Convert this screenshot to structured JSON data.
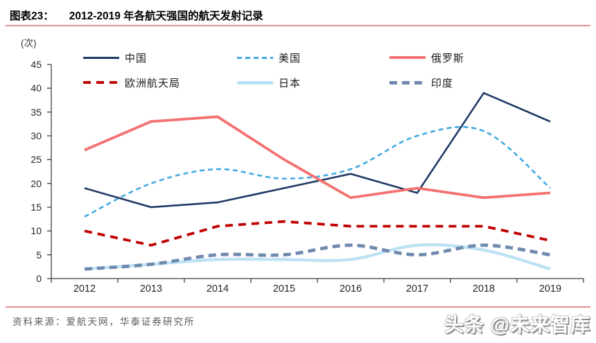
{
  "header": {
    "label": "图表23：",
    "title": "2012-2019 年各航天强国的航天发射记录"
  },
  "chart_data": {
    "type": "line",
    "title": "2012-2019 年各航天强国的航天发射记录",
    "unit_label": "(次)",
    "categories": [
      "2012",
      "2013",
      "2014",
      "2015",
      "2016",
      "2017",
      "2018",
      "2019"
    ],
    "ylim": [
      0,
      45
    ],
    "ytick_step": 5,
    "grid": false,
    "legend_position": "top-inside",
    "series": [
      {
        "key": "china",
        "name": "中国",
        "color": "#1F3864",
        "line_style": "solid",
        "values": [
          19,
          15,
          16,
          19,
          22,
          18,
          39,
          33
        ]
      },
      {
        "key": "usa",
        "name": "美国",
        "color": "#3FA9E0",
        "line_style": "dashed",
        "values": [
          13,
          20,
          23,
          21,
          23,
          30,
          31,
          19
        ]
      },
      {
        "key": "russia",
        "name": "俄罗斯",
        "color": "#F4716F",
        "line_style": "solid",
        "values": [
          27,
          33,
          34,
          25,
          17,
          19,
          17,
          18
        ]
      },
      {
        "key": "esa",
        "name": "欧洲航天局",
        "color": "#C00000",
        "line_style": "dashed",
        "values": [
          10,
          7,
          11,
          12,
          11,
          11,
          11,
          8
        ]
      },
      {
        "key": "japan",
        "name": "日本",
        "color": "#BDE2F4",
        "line_style": "solid",
        "values": [
          2,
          3,
          4,
          4,
          4,
          7,
          6,
          2
        ]
      },
      {
        "key": "india",
        "name": "印度",
        "color": "#7089AE",
        "line_style": "dashed",
        "values": [
          2,
          3,
          5,
          5,
          7,
          5,
          7,
          5
        ]
      }
    ]
  },
  "footer": {
    "source": "资料来源：爱航天网，华泰证券研究所",
    "watermark": "头条 @未来智库"
  },
  "colors": {
    "accent_rule": "#E88E90",
    "axis": "#3f3f3f",
    "tick_text": "#262626",
    "source_text": "#595959"
  }
}
